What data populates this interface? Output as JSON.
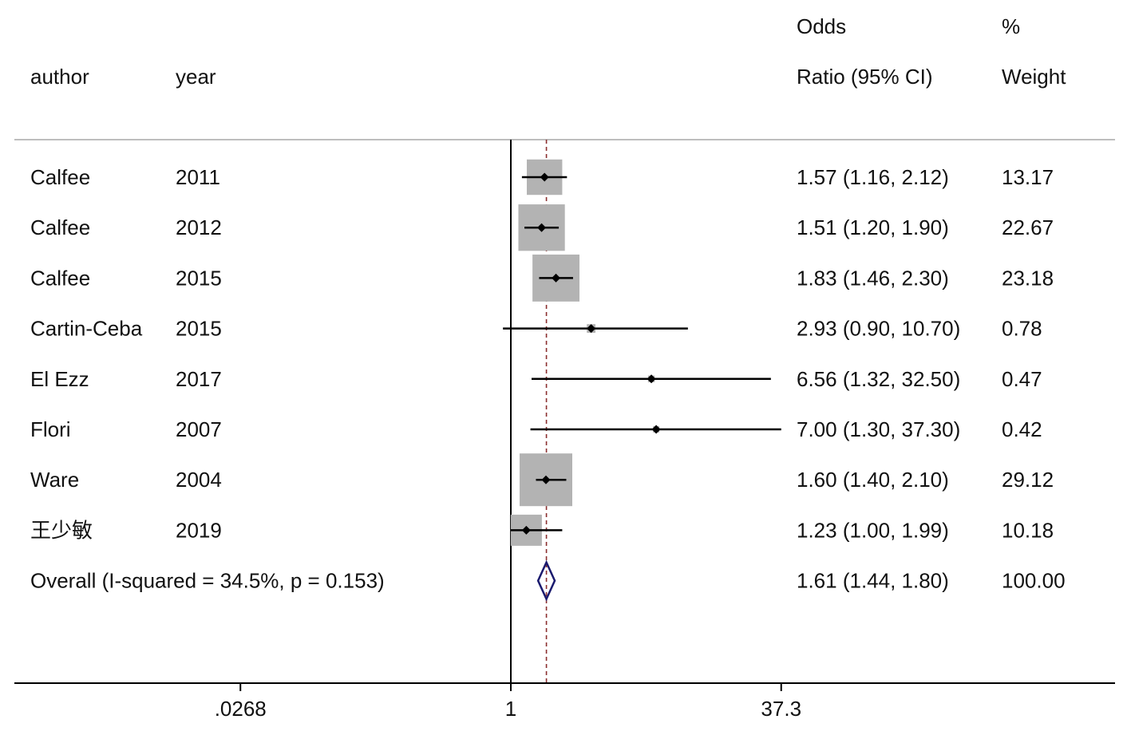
{
  "chart_data": {
    "type": "forest",
    "x_scale": "log",
    "null_line": 1,
    "pooled_line": 1.61,
    "x_ticks": [
      {
        "value": 0.0268,
        "label": ".0268"
      },
      {
        "value": 1,
        "label": "1"
      },
      {
        "value": 37.3,
        "label": "37.3"
      }
    ],
    "headers": {
      "author": "author",
      "year": "year",
      "or_line1": "Odds",
      "or_line2": "Ratio (95% CI)",
      "weight_line1": "%",
      "weight_line2": "Weight"
    },
    "studies": [
      {
        "author": "Calfee",
        "year": "2011",
        "or": 1.57,
        "lo": 1.16,
        "hi": 2.12,
        "or_text": "1.57 (1.16, 2.12)",
        "weight": 13.17,
        "weight_text": "13.17"
      },
      {
        "author": "Calfee",
        "year": "2012",
        "or": 1.51,
        "lo": 1.2,
        "hi": 1.9,
        "or_text": "1.51 (1.20, 1.90)",
        "weight": 22.67,
        "weight_text": "22.67"
      },
      {
        "author": "Calfee",
        "year": "2015",
        "or": 1.83,
        "lo": 1.46,
        "hi": 2.3,
        "or_text": "1.83 (1.46, 2.30)",
        "weight": 23.18,
        "weight_text": "23.18"
      },
      {
        "author": "Cartin-Ceba",
        "year": "2015",
        "or": 2.93,
        "lo": 0.9,
        "hi": 10.7,
        "or_text": "2.93 (0.90, 10.70)",
        "weight": 0.78,
        "weight_text": "0.78"
      },
      {
        "author": "El Ezz",
        "year": "2017",
        "or": 6.56,
        "lo": 1.32,
        "hi": 32.5,
        "or_text": "6.56 (1.32, 32.50)",
        "weight": 0.47,
        "weight_text": "0.47"
      },
      {
        "author": "Flori",
        "year": "2007",
        "or": 7.0,
        "lo": 1.3,
        "hi": 37.3,
        "or_text": "7.00 (1.30, 37.30)",
        "weight": 0.42,
        "weight_text": "0.42"
      },
      {
        "author": "Ware",
        "year": "2004",
        "or": 1.6,
        "lo": 1.4,
        "hi": 2.1,
        "or_text": "1.60 (1.40, 2.10)",
        "weight": 29.12,
        "weight_text": "29.12"
      },
      {
        "author": "王少敏",
        "year": "2019",
        "or": 1.23,
        "lo": 1.0,
        "hi": 1.99,
        "or_text": "1.23 (1.00, 1.99)",
        "weight": 10.18,
        "weight_text": "10.18"
      }
    ],
    "overall": {
      "label": "Overall  (I-squared = 34.5%, p = 0.153)",
      "or": 1.61,
      "lo": 1.44,
      "hi": 1.8,
      "or_text": "1.61 (1.44, 1.80)",
      "weight_text": "100.00"
    },
    "colors": {
      "box": "#b3b3b3",
      "line": "#000000",
      "diamond": "#1a1a6e",
      "pooled_line": "#8b2e2e",
      "separator": "#bdbdbd"
    }
  }
}
